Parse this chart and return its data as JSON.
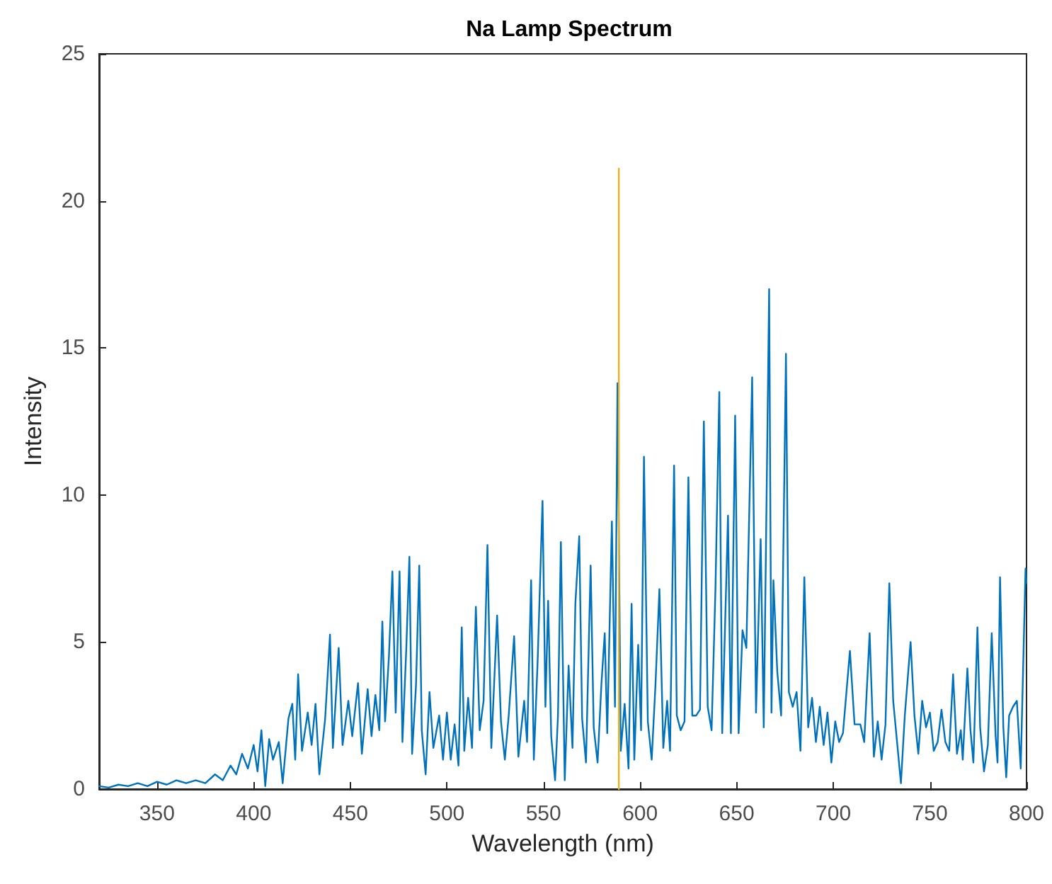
{
  "chart_data": {
    "type": "line",
    "title": "Na Lamp Spectrum",
    "xlabel": "Wavelength (nm)",
    "ylabel": "Intensity",
    "xlim": [
      320,
      800
    ],
    "xticks": [
      350,
      400,
      450,
      500,
      550,
      600,
      650,
      700,
      750,
      800
    ],
    "ylim": [
      0,
      25
    ],
    "yticks": [
      0,
      5,
      10,
      15,
      20,
      25
    ],
    "grid": false,
    "marker": "none",
    "line_style": "solid",
    "series": [
      {
        "color": "#0072bd",
        "x": [
          320,
          325,
          330,
          335,
          340,
          345,
          350,
          355,
          360,
          365,
          370,
          375,
          380,
          384,
          388,
          391,
          394,
          397,
          400,
          402,
          404,
          406,
          408,
          410,
          413,
          415,
          418,
          420,
          421.5,
          423,
          425,
          428,
          430,
          432,
          434,
          437,
          439.5,
          441,
          444,
          446,
          449,
          451,
          454,
          456,
          459,
          461,
          463,
          465,
          466.6,
          468,
          470,
          471.8,
          473.5,
          475.5,
          477,
          479,
          480.6,
          482,
          484,
          485.7,
          487,
          489,
          491,
          493,
          496,
          498,
          500,
          502,
          504,
          506,
          507.7,
          509,
          511,
          513,
          515,
          517,
          519,
          521,
          523,
          526,
          528,
          530,
          532,
          534.8,
          537,
          540,
          541.5,
          543.6,
          545,
          547,
          549.5,
          551,
          552.4,
          554,
          556,
          557.5,
          559,
          561,
          563,
          565,
          566.5,
          568.5,
          570,
          572,
          574.4,
          576,
          578,
          580,
          581.7,
          583,
          585.4,
          587,
          588.3,
          590,
          592,
          594,
          595.6,
          597,
          599,
          600.5,
          602,
          604,
          606,
          608,
          610,
          612,
          614,
          615.5,
          617.6,
          619,
          621,
          623,
          625,
          627,
          629,
          631,
          633,
          635,
          637,
          639,
          641,
          642.5,
          645.5,
          647,
          649.2,
          651,
          653,
          655,
          658,
          660,
          662.4,
          664,
          666.8,
          668,
          669,
          671,
          673,
          675.5,
          677,
          679,
          681,
          683,
          685,
          687,
          689,
          691,
          693,
          695,
          697,
          699,
          701,
          703,
          705,
          708.6,
          711,
          714,
          716,
          718.8,
          721,
          723,
          725,
          727,
          729,
          731,
          733,
          735,
          737,
          740,
          742,
          744,
          746,
          748,
          750,
          752,
          754,
          756,
          758,
          760,
          762,
          764,
          766,
          767,
          769.4,
          771,
          772.5,
          774.6,
          776,
          778,
          780,
          782,
          784,
          785,
          786.3,
          788,
          789.5,
          791,
          793,
          795,
          797,
          799.5,
          800
        ],
        "values": [
          0.1,
          0.05,
          0.15,
          0.1,
          0.2,
          0.1,
          0.25,
          0.15,
          0.3,
          0.2,
          0.3,
          0.2,
          0.5,
          0.3,
          0.8,
          0.5,
          1.2,
          0.7,
          1.5,
          0.6,
          2.0,
          0.1,
          1.7,
          1.0,
          1.6,
          0.2,
          2.4,
          2.9,
          1.0,
          3.9,
          1.3,
          2.6,
          1.5,
          2.9,
          0.5,
          2.4,
          5.25,
          1.4,
          4.8,
          1.5,
          3.0,
          1.8,
          3.6,
          1.2,
          3.4,
          1.8,
          3.2,
          2.0,
          5.7,
          2.3,
          4.5,
          7.4,
          2.6,
          7.4,
          1.6,
          4.8,
          7.9,
          1.2,
          3.5,
          7.6,
          2.0,
          0.5,
          3.3,
          1.4,
          2.5,
          1.0,
          2.6,
          1.0,
          2.2,
          0.8,
          5.5,
          1.3,
          3.1,
          1.4,
          6.2,
          2.0,
          3.0,
          8.3,
          1.4,
          5.9,
          2.3,
          1.0,
          2.5,
          5.2,
          1.1,
          3.0,
          1.6,
          7.1,
          1.0,
          4.4,
          9.8,
          2.8,
          6.4,
          1.8,
          0.3,
          2.5,
          8.4,
          0.3,
          4.2,
          1.4,
          6.3,
          8.6,
          2.4,
          0.9,
          7.6,
          2.1,
          0.9,
          3.6,
          5.3,
          1.9,
          9.1,
          2.8,
          13.8,
          1.3,
          2.9,
          0.7,
          6.3,
          1.0,
          4.9,
          2.0,
          11.3,
          2.3,
          1.0,
          3.6,
          6.8,
          1.4,
          3.0,
          1.3,
          11.0,
          2.5,
          2.0,
          2.3,
          10.6,
          2.5,
          2.5,
          2.7,
          12.5,
          2.8,
          2.0,
          6.8,
          13.5,
          1.9,
          9.3,
          1.9,
          12.7,
          1.9,
          5.4,
          4.8,
          14.0,
          2.6,
          8.5,
          2.1,
          17.0,
          2.6,
          7.1,
          4.0,
          2.5,
          14.8,
          3.3,
          2.8,
          3.3,
          1.3,
          7.2,
          2.1,
          3.1,
          1.6,
          2.8,
          1.5,
          2.6,
          0.9,
          2.3,
          1.6,
          1.9,
          4.7,
          2.2,
          2.2,
          1.6,
          5.3,
          1.1,
          2.3,
          1.0,
          2.2,
          7.0,
          3.0,
          1.6,
          0.2,
          2.5,
          5.0,
          2.5,
          1.2,
          3.0,
          2.1,
          2.6,
          1.3,
          1.6,
          2.7,
          1.6,
          1.3,
          3.9,
          1.2,
          2.0,
          1.0,
          4.1,
          2.0,
          0.9,
          5.5,
          2.1,
          0.6,
          1.5,
          5.3,
          1.8,
          0.9,
          7.2,
          2.1,
          0.4,
          2.5,
          2.8,
          3.0,
          0.7,
          7.5,
          7.0
        ]
      },
      {
        "color": "#edb120",
        "x": [
          589,
          589
        ],
        "values": [
          0,
          21.1
        ]
      }
    ]
  }
}
